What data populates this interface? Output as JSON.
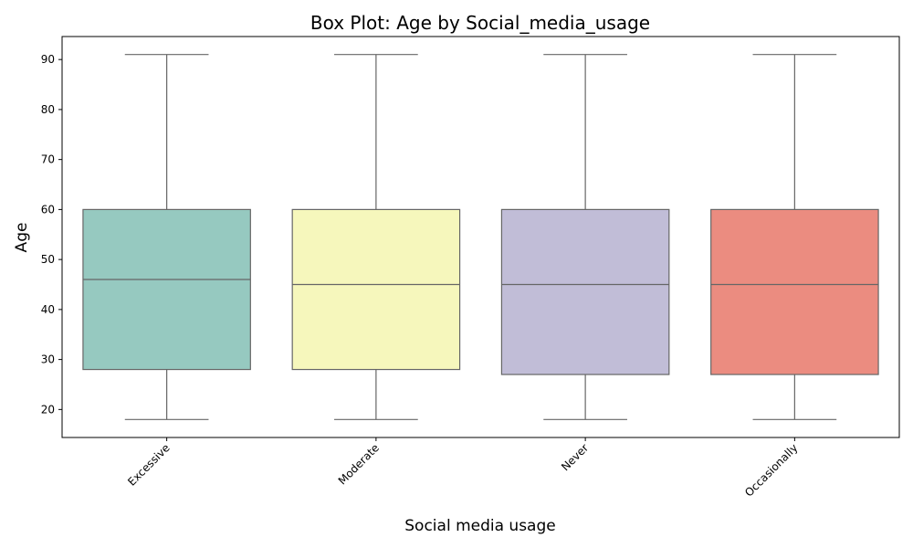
{
  "chart_data": {
    "type": "box",
    "title": "Box Plot: Age by Social_media_usage",
    "xlabel": "Social media usage",
    "ylabel": "Age",
    "ylim": [
      14.4,
      94.6
    ],
    "yticks": [
      20,
      30,
      40,
      50,
      60,
      70,
      80,
      90
    ],
    "grid": false,
    "legend": "none",
    "categories": [
      "Excessive",
      "Moderate",
      "Never",
      "Occasionally"
    ],
    "boxes": [
      {
        "category": "Excessive",
        "whisker_low": 18,
        "q1": 28,
        "median": 46,
        "q3": 60,
        "whisker_high": 91,
        "color": "#96C9C0"
      },
      {
        "category": "Moderate",
        "whisker_low": 18,
        "q1": 28,
        "median": 45,
        "q3": 60,
        "whisker_high": 91,
        "color": "#F6F7BC"
      },
      {
        "category": "Never",
        "whisker_low": 18,
        "q1": 27,
        "median": 45,
        "q3": 60,
        "whisker_high": 91,
        "color": "#C1BDD7"
      },
      {
        "category": "Occasionally",
        "whisker_low": 18,
        "q1": 27,
        "median": 45,
        "q3": 60,
        "whisker_high": 91,
        "color": "#EB8C80"
      }
    ],
    "colors": {
      "line": "#666666",
      "axis": "#000000"
    }
  }
}
